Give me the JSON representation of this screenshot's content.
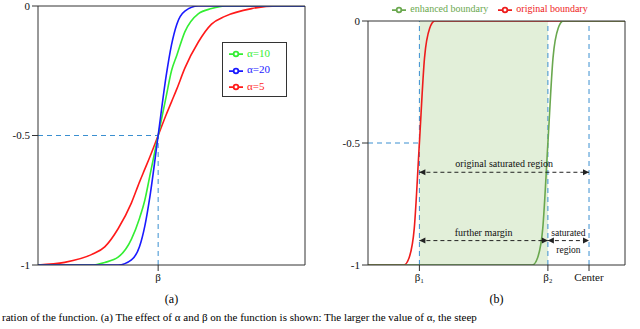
{
  "chart_data": [
    {
      "type": "line",
      "panel_label": "(a)",
      "x": [
        0,
        10,
        20,
        25,
        30,
        35,
        38,
        40,
        42,
        45,
        48,
        50,
        52,
        55,
        60,
        65,
        70,
        80,
        90,
        100
      ],
      "series": [
        {
          "name": "α=5",
          "color": "#ff1a1a",
          "values": [
            -1,
            -0.99,
            -0.96,
            -0.93,
            -0.86,
            -0.76,
            -0.68,
            -0.63,
            -0.58,
            -0.5,
            -0.42,
            -0.37,
            -0.32,
            -0.24,
            -0.14,
            -0.07,
            -0.04,
            -0.01,
            0,
            0
          ]
        },
        {
          "name": "α=10",
          "color": "#33ee33",
          "values": [
            -1,
            -1,
            -1,
            -0.99,
            -0.97,
            -0.9,
            -0.82,
            -0.75,
            -0.65,
            -0.5,
            -0.35,
            -0.25,
            -0.19,
            -0.1,
            -0.03,
            -0.01,
            0,
            0,
            0,
            0
          ]
        },
        {
          "name": "α=20",
          "color": "#1a1aff",
          "values": [
            -1,
            -1,
            -1,
            -1,
            -1,
            -0.98,
            -0.93,
            -0.85,
            -0.73,
            -0.5,
            -0.27,
            -0.15,
            -0.07,
            -0.02,
            0,
            0,
            0,
            0,
            0,
            0
          ]
        }
      ],
      "xlim": [
        0,
        100
      ],
      "xticks": [
        {
          "value": 45,
          "label": "β"
        }
      ],
      "ylim": [
        -1,
        0
      ],
      "yticks": [
        -1,
        -0.5,
        0
      ],
      "grid": false,
      "legend": "upper right",
      "guides": [
        {
          "x": [
            0,
            45
          ],
          "y": [
            -0.5,
            -0.5
          ]
        },
        {
          "x": [
            45,
            45
          ],
          "y": [
            -1,
            -0.5
          ]
        }
      ]
    },
    {
      "type": "line",
      "panel_label": "(b)",
      "x": [
        0,
        14,
        16,
        18,
        20,
        22,
        24,
        26,
        64,
        66,
        68,
        70,
        72,
        74,
        76,
        100
      ],
      "series": [
        {
          "name": "original boundary",
          "color": "#ee1c1c",
          "values": [
            -1,
            -1,
            -0.97,
            -0.85,
            -0.5,
            -0.15,
            -0.03,
            0,
            0,
            0,
            0,
            0,
            0,
            0,
            0,
            0
          ]
        },
        {
          "name": "enhanced boundary",
          "color": "#6aa84f",
          "values": [
            -1,
            -1,
            -1,
            -1,
            -1,
            -1,
            -1,
            -1,
            -1,
            -0.97,
            -0.85,
            -0.5,
            -0.15,
            -0.03,
            0,
            0
          ]
        }
      ],
      "xlim": [
        0,
        100
      ],
      "xticks": [
        {
          "value": 20,
          "label": "β₁"
        },
        {
          "value": 70,
          "label": "β₂"
        },
        {
          "value": 86,
          "label": "Center"
        }
      ],
      "ylim": [
        -1,
        0
      ],
      "yticks": [
        -1,
        -0.5,
        0
      ],
      "grid": false,
      "legend": "top",
      "shaded_region": [
        20,
        70
      ],
      "guides": [
        {
          "x": [
            0,
            20
          ],
          "y": [
            -0.5,
            -0.5
          ]
        },
        {
          "x": [
            20,
            20
          ],
          "y": [
            -1,
            0
          ]
        },
        {
          "x": [
            70,
            70
          ],
          "y": [
            -1,
            0
          ]
        },
        {
          "x": [
            86,
            86
          ],
          "y": [
            -1,
            0
          ]
        }
      ],
      "annotations": [
        {
          "text": "original saturated region",
          "x": [
            20,
            86
          ],
          "y": -0.62
        },
        {
          "text": "further margin",
          "x": [
            20,
            70
          ],
          "y": -0.9
        },
        {
          "text": "saturated region",
          "x": [
            70,
            86
          ],
          "y": -0.9
        }
      ]
    }
  ],
  "caption": "ration of the function. (a) The effect of α and β on the function is shown: The larger the value of α, the steep"
}
